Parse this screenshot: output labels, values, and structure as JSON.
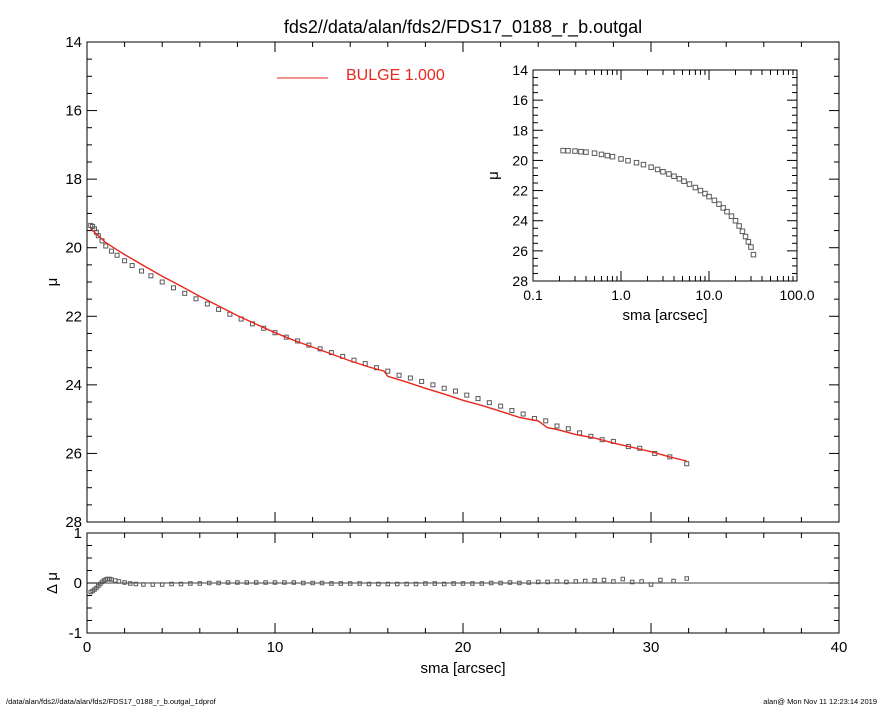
{
  "title": "fds2//data/alan/fds2/FDS17_0188_r_b.outgal",
  "footer_left": "/data/alan/fds2//data/alan/fds2/FDS17_0188_r_b.outgal_1dprof",
  "footer_right": "alan@  Mon Nov 11 12:23:14 2019",
  "colors": {
    "model": "#e8271e",
    "data": "#5a5a5a",
    "legend_text": "#e8271e"
  },
  "legend": {
    "label": "BULGE  1.000",
    "placement": "top-center"
  },
  "chart_data": [
    {
      "id": "main",
      "type": "scatter",
      "xlabel": "",
      "ylabel": "μ",
      "xlim": [
        0,
        40
      ],
      "ylim": [
        28,
        14
      ],
      "y_inverted": true,
      "xticks": [
        0,
        10,
        20,
        30,
        40
      ],
      "yticks": [
        14,
        16,
        18,
        20,
        22,
        24,
        26,
        28
      ],
      "series": [
        {
          "kind": "points",
          "x": [
            0.2,
            0.3,
            0.4,
            0.5,
            0.6,
            0.8,
            1.0,
            1.3,
            1.6,
            2.0,
            2.4,
            2.9,
            3.4,
            4.0,
            4.6,
            5.2,
            5.8,
            6.4,
            7.0,
            7.6,
            8.2,
            8.8,
            9.4,
            10.0,
            10.6,
            11.2,
            11.8,
            12.4,
            13.0,
            13.6,
            14.2,
            14.8,
            15.4,
            16.0,
            16.6,
            17.2,
            17.8,
            18.4,
            19.0,
            19.6,
            20.2,
            20.8,
            21.4,
            22.0,
            22.6,
            23.2,
            23.8,
            24.4,
            25.0,
            25.6,
            26.2,
            26.8,
            27.4,
            28.0,
            28.8,
            29.4,
            30.2,
            31.0,
            31.9
          ],
          "y": [
            19.35,
            19.38,
            19.45,
            19.55,
            19.65,
            19.8,
            19.95,
            20.1,
            20.22,
            20.38,
            20.52,
            20.68,
            20.82,
            21.0,
            21.17,
            21.33,
            21.49,
            21.64,
            21.8,
            21.94,
            22.08,
            22.22,
            22.35,
            22.48,
            22.61,
            22.72,
            22.84,
            22.95,
            23.06,
            23.17,
            23.28,
            23.38,
            23.5,
            23.6,
            23.72,
            23.8,
            23.9,
            24.0,
            24.1,
            24.18,
            24.3,
            24.4,
            24.52,
            24.62,
            24.75,
            24.85,
            24.98,
            25.05,
            25.2,
            25.28,
            25.4,
            25.5,
            25.6,
            25.65,
            25.8,
            25.85,
            26.0,
            26.1,
            26.3
          ]
        },
        {
          "kind": "line",
          "name": "BULGE  1.000",
          "x": [
            0.2,
            0.5,
            1.0,
            1.5,
            2.0,
            3.0,
            4.0,
            5.0,
            6.0,
            7.0,
            8.0,
            9.0,
            10.0,
            11.0,
            12.0,
            13.0,
            14.0,
            15.0,
            15.8,
            16.0,
            17.0,
            18.0,
            19.0,
            20.0,
            21.0,
            22.0,
            23.0,
            24.0,
            24.5,
            25.0,
            26.0,
            27.0,
            28.0,
            29.0,
            30.0,
            31.0,
            31.9
          ],
          "y": [
            19.45,
            19.6,
            19.85,
            20.03,
            20.2,
            20.52,
            20.83,
            21.12,
            21.42,
            21.7,
            21.98,
            22.23,
            22.48,
            22.7,
            22.9,
            23.1,
            23.3,
            23.48,
            23.6,
            23.75,
            23.92,
            24.1,
            24.27,
            24.45,
            24.6,
            24.77,
            24.95,
            25.05,
            25.25,
            25.3,
            25.45,
            25.55,
            25.7,
            25.82,
            25.95,
            26.1,
            26.22
          ]
        }
      ]
    },
    {
      "id": "residual",
      "type": "scatter",
      "xlabel": "sma [arcsec]",
      "ylabel": "Δ μ",
      "xlim": [
        0,
        40
      ],
      "ylim": [
        -1,
        1
      ],
      "xticks": [
        0,
        10,
        20,
        30,
        40
      ],
      "yticks": [
        -1,
        0,
        1
      ],
      "zero_line": true,
      "series": [
        {
          "kind": "points",
          "x": [
            0.2,
            0.3,
            0.4,
            0.5,
            0.6,
            0.7,
            0.8,
            0.9,
            1.0,
            1.1,
            1.2,
            1.3,
            1.5,
            1.7,
            2.0,
            2.3,
            2.6,
            3.0,
            3.5,
            4.0,
            4.5,
            5.0,
            5.5,
            6.0,
            6.5,
            7.0,
            7.5,
            8.0,
            8.5,
            9.0,
            9.5,
            10.0,
            10.5,
            11.0,
            11.5,
            12.0,
            12.5,
            13.0,
            13.5,
            14.0,
            14.5,
            15.0,
            15.5,
            16.0,
            16.5,
            17.0,
            17.5,
            18.0,
            18.5,
            19.0,
            19.5,
            20.0,
            20.5,
            21.0,
            21.5,
            22.0,
            22.5,
            23.0,
            23.5,
            24.0,
            24.5,
            25.0,
            25.5,
            26.0,
            26.5,
            27.0,
            27.5,
            28.0,
            28.5,
            29.0,
            29.5,
            30.0,
            30.5,
            31.2,
            31.9
          ],
          "y": [
            -0.18,
            -0.16,
            -0.13,
            -0.1,
            -0.06,
            -0.02,
            0.02,
            0.05,
            0.07,
            0.08,
            0.08,
            0.07,
            0.05,
            0.03,
            0.01,
            -0.01,
            -0.02,
            -0.03,
            -0.03,
            -0.03,
            -0.02,
            -0.02,
            -0.01,
            -0.01,
            0.0,
            0.0,
            0.01,
            0.01,
            0.01,
            0.01,
            0.01,
            0.01,
            0.01,
            0.01,
            0.0,
            0.0,
            0.0,
            -0.01,
            -0.01,
            -0.01,
            -0.01,
            -0.02,
            -0.02,
            -0.02,
            -0.02,
            -0.02,
            -0.02,
            -0.01,
            -0.01,
            -0.02,
            -0.01,
            -0.01,
            -0.01,
            -0.01,
            0.0,
            0.0,
            0.01,
            0.0,
            0.01,
            0.02,
            0.02,
            0.03,
            0.02,
            0.03,
            0.04,
            0.05,
            0.06,
            0.03,
            0.08,
            0.02,
            0.03,
            -0.03,
            0.06,
            0.04,
            0.09
          ]
        }
      ]
    },
    {
      "id": "inset",
      "type": "scatter",
      "xlabel": "sma [arcsec]",
      "ylabel": "μ",
      "xscale": "log",
      "xlim": [
        0.1,
        100
      ],
      "ylim": [
        28,
        14
      ],
      "y_inverted": true,
      "xticks": [
        0.1,
        1.0,
        10.0,
        100.0
      ],
      "xticklabels": [
        "0.1",
        "1.0",
        "10.0",
        "100.0"
      ],
      "yticks": [
        14,
        16,
        18,
        20,
        22,
        24,
        26,
        28
      ],
      "series": [
        {
          "kind": "points",
          "x": [
            0.22,
            0.25,
            0.3,
            0.35,
            0.4,
            0.5,
            0.6,
            0.7,
            0.8,
            1.0,
            1.2,
            1.5,
            1.8,
            2.2,
            2.6,
            3.0,
            3.5,
            4.0,
            4.6,
            5.2,
            6.0,
            7.0,
            8.0,
            9.0,
            10.0,
            11.5,
            13.0,
            14.5,
            16.0,
            18.0,
            20.0,
            22.0,
            24.0,
            26.0,
            28.0,
            30.0,
            32.0
          ],
          "y": [
            19.35,
            19.36,
            19.38,
            19.42,
            19.45,
            19.52,
            19.6,
            19.68,
            19.75,
            19.9,
            20.02,
            20.15,
            20.28,
            20.45,
            20.6,
            20.75,
            20.9,
            21.05,
            21.22,
            21.38,
            21.57,
            21.8,
            22.0,
            22.2,
            22.4,
            22.65,
            22.9,
            23.15,
            23.4,
            23.7,
            24.0,
            24.35,
            24.7,
            25.05,
            25.4,
            25.75,
            26.25
          ]
        }
      ]
    }
  ]
}
